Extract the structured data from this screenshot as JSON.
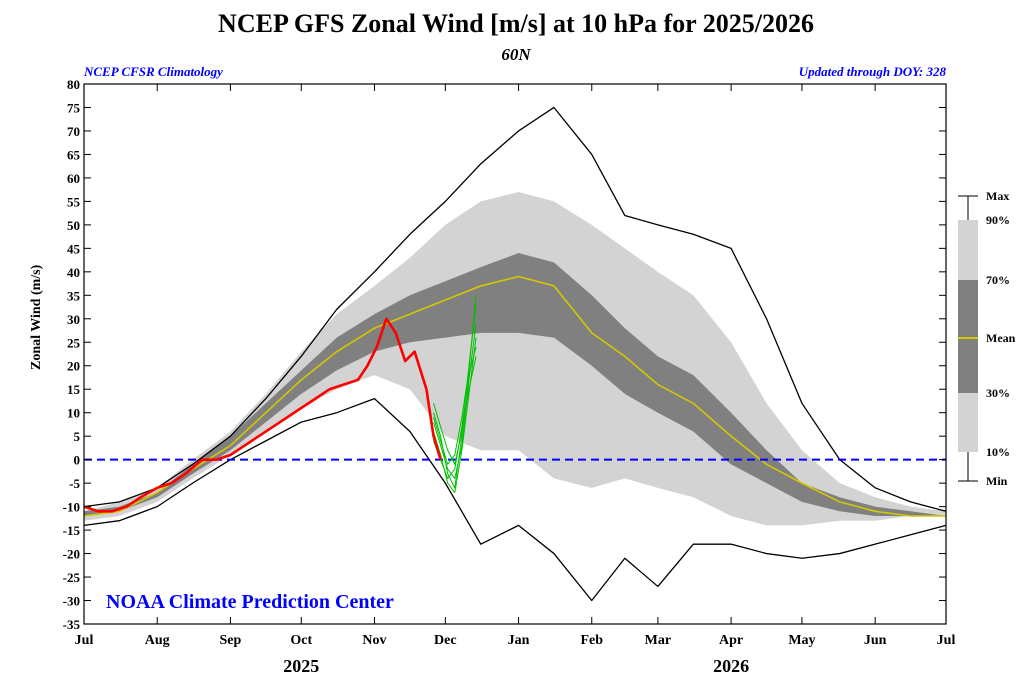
{
  "header": {
    "title": "NCEP GFS Zonal Wind [m/s] at 10 hPa for 2025/2026",
    "subtitle": "60N",
    "left_note": "NCEP CFSR Climatology",
    "right_note": "Updated through DOY: 328",
    "watermark": "NOAA Climate Prediction Center"
  },
  "colors": {
    "max_min_line": "#000000",
    "band_10_90": "#d3d3d3",
    "band_30_70": "#808080",
    "mean_line": "#d4c800",
    "observed_line": "#ff0000",
    "forecast_lines": "#00c000",
    "zero_line": "#0000ff",
    "notes": "#0000ff"
  },
  "chart_data": {
    "type": "area",
    "ylabel": "Zonal Wind (m/s)",
    "xlabel": "",
    "ylim": [
      -35,
      80
    ],
    "yticks": [
      80,
      75,
      70,
      65,
      60,
      55,
      50,
      45,
      40,
      35,
      30,
      25,
      20,
      15,
      10,
      5,
      0,
      -5,
      -10,
      -15,
      -20,
      -25,
      -30,
      -35
    ],
    "x_unit": "days since Jul 1, 2025",
    "xlim": [
      0,
      365
    ],
    "month_ticks": [
      {
        "label": "Jul",
        "day": 0
      },
      {
        "label": "Aug",
        "day": 31
      },
      {
        "label": "Sep",
        "day": 62
      },
      {
        "label": "Oct",
        "day": 92
      },
      {
        "label": "Nov",
        "day": 123
      },
      {
        "label": "Dec",
        "day": 153
      },
      {
        "label": "Jan",
        "day": 184
      },
      {
        "label": "Feb",
        "day": 215
      },
      {
        "label": "Mar",
        "day": 243
      },
      {
        "label": "Apr",
        "day": 274
      },
      {
        "label": "May",
        "day": 304
      },
      {
        "label": "Jun",
        "day": 335
      },
      {
        "label": "Jul",
        "day": 365
      }
    ],
    "year_labels": [
      {
        "label": "2025",
        "day": 92
      },
      {
        "label": "2026",
        "day": 274
      }
    ],
    "legend": {
      "position": "right",
      "entries": [
        "Max",
        "90%",
        "70%",
        "Mean",
        "30%",
        "10%",
        "Min"
      ]
    },
    "zero_line": 0,
    "x_days": [
      0,
      15,
      31,
      46,
      62,
      77,
      92,
      107,
      123,
      138,
      153,
      168,
      184,
      199,
      215,
      229,
      243,
      258,
      274,
      289,
      304,
      320,
      335,
      350,
      365
    ],
    "max": [
      -10,
      -9,
      -6,
      -1,
      5,
      13,
      22,
      32,
      40,
      48,
      55,
      63,
      70,
      75,
      65,
      52,
      50,
      48,
      45,
      30,
      12,
      0,
      -6,
      -9,
      -11
    ],
    "p90": [
      -11,
      -9,
      -6,
      0,
      6,
      14,
      23,
      31,
      37,
      43,
      50,
      55,
      57,
      55,
      50,
      45,
      40,
      35,
      25,
      12,
      2,
      -5,
      -8,
      -10,
      -11
    ],
    "p70": [
      -11,
      -10,
      -7,
      -1,
      5,
      12,
      19,
      26,
      31,
      35,
      38,
      41,
      44,
      42,
      35,
      28,
      22,
      18,
      10,
      2,
      -5,
      -8,
      -10,
      -11,
      -12
    ],
    "mean": [
      -12,
      -11,
      -7,
      -2,
      3,
      10,
      17,
      23,
      28,
      31,
      34,
      37,
      39,
      37,
      27,
      22,
      16,
      12,
      5,
      -1,
      -5,
      -9,
      -11,
      -12,
      -12
    ],
    "p30": [
      -12,
      -11,
      -8,
      -3,
      2,
      8,
      14,
      19,
      23,
      25,
      26,
      27,
      27,
      26,
      20,
      14,
      10,
      6,
      -1,
      -5,
      -9,
      -11,
      -12,
      -12,
      -12
    ],
    "p10": [
      -13,
      -12,
      -9,
      -4,
      1,
      6,
      11,
      15,
      18,
      15,
      5,
      2,
      2,
      -4,
      -6,
      -4,
      -6,
      -8,
      -12,
      -14,
      -14,
      -13,
      -13,
      -12,
      -12
    ],
    "min": [
      -14,
      -13,
      -10,
      -5,
      0,
      4,
      8,
      10,
      13,
      6,
      -5,
      -18,
      -14,
      -20,
      -30,
      -21,
      -27,
      -18,
      -18,
      -20,
      -21,
      -20,
      -18,
      -16,
      -14
    ],
    "observed": {
      "name": "2025/2026",
      "x": [
        0,
        6,
        12,
        18,
        24,
        31,
        37,
        43,
        50,
        56,
        62,
        68,
        74,
        80,
        86,
        92,
        98,
        104,
        110,
        116,
        120,
        124,
        128,
        132,
        136,
        140,
        145,
        148,
        151
      ],
      "y": [
        -10,
        -11,
        -11,
        -10,
        -8,
        -6,
        -5,
        -3,
        0,
        0,
        1,
        3,
        5,
        7,
        9,
        11,
        13,
        15,
        16,
        17,
        20,
        24,
        30,
        27,
        21,
        23,
        15,
        5,
        0
      ]
    },
    "forecast_members": [
      {
        "x": [
          148,
          151,
          154,
          157,
          160,
          163,
          166
        ],
        "y": [
          10,
          5,
          -3,
          -6,
          5,
          20,
          33
        ]
      },
      {
        "x": [
          148,
          151,
          154,
          157,
          160,
          163,
          166
        ],
        "y": [
          8,
          3,
          -2,
          -4,
          3,
          17,
          29
        ]
      },
      {
        "x": [
          148,
          151,
          154,
          157,
          160,
          163,
          166
        ],
        "y": [
          6,
          1,
          -5,
          -7,
          2,
          14,
          26
        ]
      },
      {
        "x": [
          148,
          151,
          154,
          157,
          160,
          163,
          166
        ],
        "y": [
          4,
          0,
          -4,
          -2,
          7,
          18,
          24
        ]
      },
      {
        "x": [
          148,
          151,
          154,
          157,
          160,
          163,
          166
        ],
        "y": [
          12,
          7,
          2,
          -1,
          6,
          15,
          22
        ]
      },
      {
        "x": [
          148,
          151,
          154,
          157,
          160,
          163,
          166
        ],
        "y": [
          9,
          4,
          -1,
          1,
          9,
          19,
          35
        ]
      }
    ]
  }
}
